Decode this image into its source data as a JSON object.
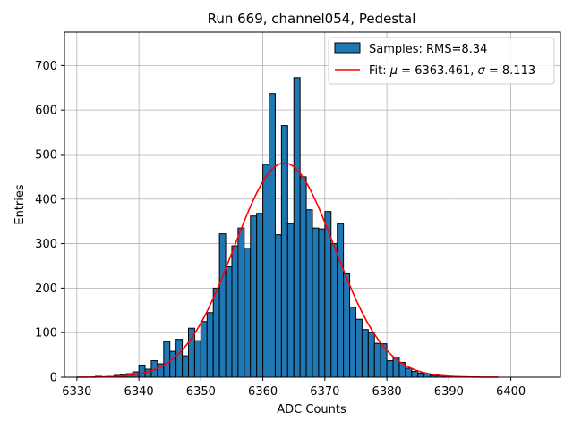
{
  "chart_data": {
    "type": "bar",
    "title": "Run 669, channel054, Pedestal",
    "xlabel": "ADC Counts",
    "ylabel": "Entries",
    "xlim": [
      6328,
      6408
    ],
    "ylim": [
      0,
      775
    ],
    "xticks": [
      6330,
      6340,
      6350,
      6360,
      6370,
      6380,
      6390,
      6400
    ],
    "yticks": [
      0,
      100,
      200,
      300,
      400,
      500,
      600,
      700
    ],
    "grid": true,
    "legend_position": "top-right",
    "bin_width": 1,
    "series": [
      {
        "name": "Samples: RMS=8.34",
        "kind": "histogram",
        "color": "#1f77b4",
        "edge_color": "#000000",
        "bin_starts": [
          6330,
          6331,
          6332,
          6333,
          6334,
          6335,
          6336,
          6337,
          6338,
          6339,
          6340,
          6341,
          6342,
          6343,
          6344,
          6345,
          6346,
          6347,
          6348,
          6349,
          6350,
          6351,
          6352,
          6353,
          6354,
          6355,
          6356,
          6357,
          6358,
          6359,
          6360,
          6361,
          6362,
          6363,
          6364,
          6365,
          6366,
          6367,
          6368,
          6369,
          6370,
          6371,
          6372,
          6373,
          6374,
          6375,
          6376,
          6377,
          6378,
          6379,
          6380,
          6381,
          6382,
          6383,
          6384,
          6385,
          6386,
          6387,
          6388,
          6389,
          6390,
          6391,
          6392,
          6393,
          6394,
          6395,
          6396,
          6397
        ],
        "values": [
          0,
          0,
          0,
          2,
          1,
          2,
          4,
          6,
          8,
          12,
          27,
          18,
          37,
          30,
          80,
          58,
          85,
          48,
          110,
          82,
          125,
          145,
          200,
          322,
          248,
          295,
          335,
          290,
          362,
          368,
          478,
          637,
          320,
          565,
          345,
          673,
          450,
          376,
          335,
          333,
          372,
          300,
          345,
          232,
          157,
          130,
          107,
          100,
          76,
          75,
          37,
          45,
          33,
          20,
          13,
          9,
          7,
          4,
          3,
          2,
          1,
          0,
          0,
          0,
          0,
          0,
          0,
          0
        ]
      },
      {
        "name": "Fit: μ = 6363.461, σ = 8.113",
        "legend_label": {
          "pre": "Fit: ",
          "mu": "μ",
          "mid": " = 6363.461, ",
          "sigma": "σ",
          "post": " = 8.113"
        },
        "kind": "gaussian",
        "color": "#ff0000",
        "mu": 6363.461,
        "sigma": 8.113,
        "amplitude": 481,
        "x_range": [
          6330,
          6398
        ]
      }
    ]
  }
}
